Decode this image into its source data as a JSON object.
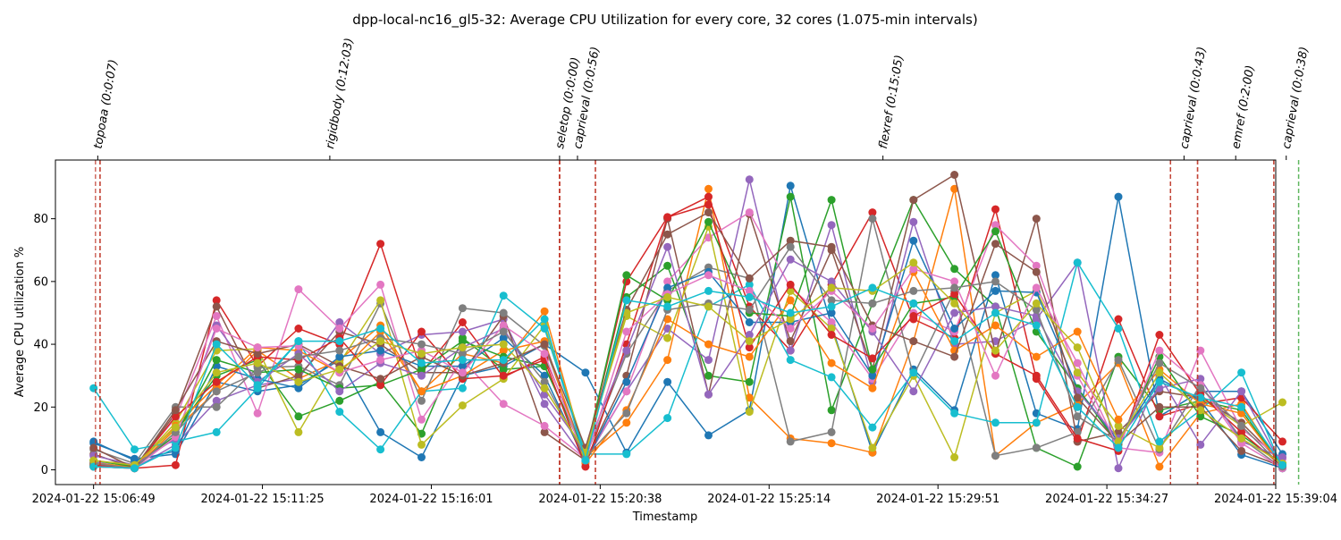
{
  "chart_data": {
    "type": "line",
    "title": "dpp-local-nc16_gl5-32: Average CPU Utilization for every core, 32 cores (1.075-min intervals)",
    "xlabel": "Timestamp",
    "ylabel": "Average CPU utilization %",
    "x_ticks": [
      "2024-01-22 15:06:49",
      "2024-01-22 15:11:25",
      "2024-01-22 15:16:01",
      "2024-01-22 15:20:38",
      "2024-01-22 15:25:14",
      "2024-01-22 15:29:51",
      "2024-01-22 15:34:27",
      "2024-01-22 15:39:04"
    ],
    "y_ticks": [
      0,
      20,
      40,
      60,
      80
    ],
    "x_range_min": [
      6.0,
      38.0
    ],
    "ylim": [
      -4.7,
      98.7
    ],
    "grid": false,
    "legend": "none",
    "x_minutes": [
      7.0,
      8.075,
      9.15,
      10.225,
      11.3,
      12.375,
      13.45,
      14.525,
      15.6,
      16.675,
      17.75,
      18.825,
      19.9,
      20.975,
      22.05,
      23.125,
      24.2,
      25.275,
      26.35,
      27.425,
      28.5,
      29.575,
      30.65,
      31.725,
      32.8,
      33.875,
      34.95,
      36.025,
      37.1,
      38.175
    ],
    "stages": [
      {
        "label": "topoaa (0:0:07)",
        "start": 7.05,
        "end": 7.17
      },
      {
        "label": "rigidbody (0:12:03)",
        "start": 7.17,
        "end": 19.22
      },
      {
        "label": "seletop (0:0:00)",
        "start": 19.22,
        "end": 19.22
      },
      {
        "label": "caprieval (0:0:56)",
        "start": 19.22,
        "end": 20.16
      },
      {
        "label": "flexref (0:15:05)",
        "start": 20.16,
        "end": 35.24
      },
      {
        "label": "caprieval (0:0:43)",
        "start": 35.24,
        "end": 35.95
      },
      {
        "label": "emref (0:2:00)",
        "start": 35.95,
        "end": 37.95
      },
      {
        "label": "caprieval (0:0:38)",
        "start": 37.95,
        "end": 38.6
      }
    ],
    "colors": [
      "#1f77b4",
      "#ff7f0e",
      "#2ca02c",
      "#d62728",
      "#9467bd",
      "#8c564b",
      "#e377c2",
      "#7f7f7f",
      "#bcbd22",
      "#17becf"
    ],
    "series": [
      {
        "values": [
          8.5,
          3.5,
          5.0,
          28.0,
          25.0,
          27.0,
          35.0,
          12.0,
          4.0,
          30.0,
          33.0,
          40.0,
          31.0,
          5.5,
          28.0,
          11.0,
          19.0,
          90.5,
          46.0,
          5.5,
          32.0,
          19.0,
          62.0,
          18.0,
          13.0,
          87.0,
          17.0,
          25.0,
          25.0,
          5.0
        ]
      },
      {
        "values": [
          1.0,
          0.5,
          13.0,
          25.0,
          38.0,
          29.0,
          35.0,
          46.0,
          25.0,
          37.0,
          34.0,
          50.5,
          4.0,
          15.0,
          35.0,
          89.5,
          23.0,
          10.0,
          8.5,
          5.5,
          41.0,
          89.5,
          4.5,
          15.0,
          21.0,
          34.0,
          1.0,
          18.0,
          21.0,
          0.5
        ]
      },
      {
        "values": [
          1.5,
          0.5,
          12.0,
          30.0,
          35.0,
          17.0,
          22.0,
          28.0,
          11.5,
          42.0,
          32.0,
          33.0,
          4.5,
          55.0,
          65.0,
          30.0,
          28.0,
          87.0,
          19.0,
          53.0,
          86.0,
          64.0,
          52.0,
          7.0,
          1.0,
          36.0,
          19.0,
          22.0,
          19.0,
          1.0
        ]
      },
      {
        "values": [
          1.0,
          0.5,
          1.5,
          54.0,
          33.0,
          45.0,
          40.0,
          72.0,
          31.0,
          47.0,
          29.5,
          36.0,
          5.0,
          60.0,
          80.5,
          87.0,
          52.0,
          38.0,
          59.0,
          82.0,
          48.0,
          42.0,
          83.0,
          29.0,
          9.0,
          48.0,
          17.0,
          21.0,
          23.0,
          9.0
        ]
      },
      {
        "values": [
          2.5,
          0.5,
          8.0,
          22.0,
          27.0,
          29.0,
          47.0,
          37.0,
          43.0,
          44.0,
          48.0,
          21.0,
          3.0,
          25.0,
          45.0,
          35.0,
          92.5,
          38.0,
          78.0,
          28.0,
          79.0,
          40.0,
          41.0,
          48.0,
          66.0,
          0.5,
          30.0,
          8.0,
          25.0,
          1.0
        ]
      },
      {
        "values": [
          5.0,
          0.5,
          18.0,
          52.0,
          26.0,
          30.0,
          44.0,
          40.0,
          31.0,
          31.0,
          49.0,
          12.0,
          3.0,
          30.0,
          80.0,
          24.0,
          81.5,
          41.0,
          70.0,
          32.0,
          86.0,
          94.0,
          37.0,
          80.0,
          9.0,
          12.0,
          25.0,
          23.0,
          15.0,
          2.0
        ]
      },
      {
        "values": [
          2.0,
          1.0,
          16.5,
          49.0,
          18.0,
          57.5,
          45.0,
          59.0,
          16.0,
          35.0,
          21.0,
          14.0,
          3.5,
          25.0,
          60.0,
          74.0,
          82.0,
          58.0,
          47.0,
          29.0,
          50.0,
          44.0,
          78.0,
          65.0,
          30.0,
          7.0,
          5.5,
          38.0,
          13.0,
          3.5
        ]
      },
      {
        "values": [
          6.5,
          2.0,
          20.0,
          20.0,
          32.5,
          33.0,
          27.0,
          53.0,
          22.0,
          51.5,
          50.0,
          39.5,
          4.0,
          37.0,
          57.0,
          64.5,
          61.0,
          9.0,
          12.0,
          80.0,
          30.0,
          57.0,
          4.5,
          7.0,
          12.0,
          35.0,
          6.5,
          27.0,
          10.0,
          0.5
        ]
      },
      {
        "values": [
          2.0,
          1.0,
          15.0,
          38.0,
          38.5,
          12.0,
          34.0,
          54.0,
          8.0,
          20.5,
          29.0,
          46.0,
          6.0,
          49.0,
          42.0,
          77.5,
          18.5,
          57.0,
          45.0,
          7.0,
          30.0,
          4.0,
          50.0,
          57.0,
          31.0,
          14.0,
          7.0,
          23.0,
          14.0,
          21.5
        ]
      },
      {
        "values": [
          26.0,
          6.5,
          9.0,
          12.0,
          26.0,
          41.0,
          18.5,
          6.5,
          25.0,
          26.0,
          55.5,
          45.0,
          5.0,
          5.0,
          16.5,
          52.0,
          59.0,
          35.0,
          29.5,
          13.5,
          31.0,
          18.0,
          15.0,
          15.0,
          66.0,
          45.0,
          9.0,
          19.0,
          31.0,
          0.5
        ]
      },
      {
        "values": [
          9.0,
          3.0,
          6.0,
          33.0,
          29.0,
          26.0,
          36.0,
          38.0,
          33.0,
          33.0,
          42.0,
          30.0,
          2.5,
          28.0,
          58.0,
          63.0,
          47.0,
          47.0,
          50.0,
          30.0,
          73.0,
          45.0,
          57.0,
          56.5,
          26.0,
          9.0,
          29.0,
          22.0,
          4.8,
          0.5
        ]
      },
      {
        "values": [
          2.0,
          1.0,
          14.0,
          27.0,
          39.0,
          38.0,
          31.0,
          44.0,
          25.0,
          30.0,
          38.0,
          41.0,
          2.0,
          19.0,
          48.0,
          40.0,
          36.0,
          54.0,
          34.0,
          26.0,
          63.0,
          38.0,
          46.0,
          36.0,
          44.0,
          16.0,
          32.0,
          21.0,
          18.0,
          1.0
        ]
      },
      {
        "values": [
          3.0,
          1.0,
          11.0,
          35.0,
          31.0,
          32.0,
          26.0,
          27.0,
          32.0,
          41.0,
          36.0,
          33.0,
          5.0,
          62.0,
          54.0,
          79.0,
          50.0,
          49.0,
          86.0,
          32.0,
          53.0,
          55.0,
          76.0,
          44.0,
          26.0,
          8.0,
          36.0,
          17.0,
          11.0,
          2.0
        ]
      },
      {
        "values": [
          1.5,
          0.5,
          17.0,
          28.0,
          36.0,
          35.0,
          42.0,
          27.0,
          44.0,
          29.0,
          30.0,
          35.0,
          1.0,
          40.0,
          80.5,
          84.5,
          39.0,
          59.0,
          43.0,
          35.5,
          49.0,
          56.0,
          37.0,
          30.0,
          10.0,
          6.0,
          43.0,
          24.0,
          12.0,
          1.0
        ]
      },
      {
        "values": [
          4.5,
          1.5,
          10.0,
          46.0,
          28.0,
          37.0,
          25.0,
          34.0,
          30.0,
          39.0,
          45.0,
          24.0,
          6.0,
          38.0,
          71.0,
          24.0,
          43.0,
          67.0,
          60.0,
          44.0,
          25.0,
          50.0,
          52.0,
          49.0,
          25.0,
          10.0,
          26.0,
          29.0,
          9.0,
          4.0
        ]
      },
      {
        "values": [
          7.0,
          0.5,
          19.0,
          41.0,
          37.0,
          40.0,
          33.0,
          29.0,
          36.0,
          30.0,
          34.0,
          40.0,
          7.0,
          51.0,
          75.0,
          82.0,
          61.0,
          73.0,
          71.0,
          46.0,
          41.0,
          36.0,
          72.0,
          63.0,
          23.0,
          8.5,
          20.0,
          20.0,
          6.0,
          1.0
        ]
      },
      {
        "values": [
          1.0,
          0.5,
          10.5,
          45.0,
          39.0,
          39.5,
          31.0,
          35.0,
          38.0,
          31.0,
          46.0,
          37.0,
          3.0,
          44.0,
          56.0,
          62.0,
          57.0,
          45.0,
          57.0,
          45.0,
          64.0,
          60.0,
          30.0,
          58.0,
          34.0,
          7.0,
          38.0,
          27.0,
          8.5,
          0.5
        ]
      },
      {
        "values": [
          2.0,
          0.5,
          12.0,
          25.0,
          31.0,
          36.0,
          38.0,
          42.0,
          40.0,
          37.0,
          44.0,
          28.0,
          4.0,
          18.0,
          51.0,
          53.0,
          51.0,
          71.0,
          54.0,
          53.0,
          57.0,
          58.0,
          60.0,
          51.0,
          17.0,
          9.0,
          34.0,
          26.0,
          14.0,
          1.0
        ]
      },
      {
        "values": [
          3.0,
          1.5,
          13.5,
          31.0,
          34.0,
          28.0,
          32.0,
          41.0,
          37.0,
          39.0,
          40.0,
          26.0,
          5.5,
          50.0,
          55.0,
          52.0,
          41.0,
          48.0,
          58.0,
          57.0,
          66.0,
          53.0,
          38.0,
          53.0,
          39.0,
          9.0,
          31.0,
          19.0,
          10.0,
          2.0
        ]
      },
      {
        "values": [
          1.0,
          0.5,
          7.0,
          40.0,
          27.0,
          41.0,
          41.0,
          45.0,
          34.0,
          35.0,
          35.0,
          48.0,
          3.0,
          54.0,
          52.0,
          57.0,
          55.0,
          50.0,
          52.0,
          58.0,
          53.0,
          41.0,
          50.0,
          46.0,
          20.0,
          7.0,
          28.0,
          23.0,
          20.0,
          1.5
        ]
      }
    ]
  }
}
